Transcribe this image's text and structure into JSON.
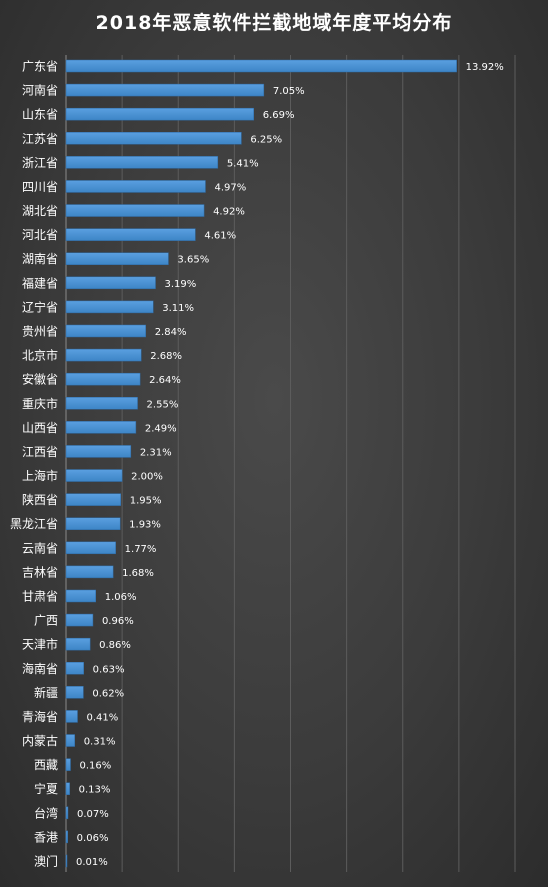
{
  "chart_data": {
    "type": "bar",
    "orientation": "horizontal",
    "title": "2018年恶意软件拦截地域年度平均分布",
    "xlabel": "",
    "ylabel": "",
    "xlim": [
      0,
      16
    ],
    "grid": "vertical gridlines",
    "legend": "none",
    "value_format": "percent, two decimals",
    "bar_color": "#3d85c6",
    "categories": [
      "广东省",
      "河南省",
      "山东省",
      "江苏省",
      "浙江省",
      "四川省",
      "湖北省",
      "河北省",
      "湖南省",
      "福建省",
      "辽宁省",
      "贵州省",
      "北京市",
      "安徽省",
      "重庆市",
      "山西省",
      "江西省",
      "上海市",
      "陕西省",
      "黑龙江省",
      "云南省",
      "吉林省",
      "甘肃省",
      "广西",
      "天津市",
      "海南省",
      "新疆",
      "青海省",
      "内蒙古",
      "西藏",
      "宁夏",
      "台湾",
      "香港",
      "澳门"
    ],
    "values": [
      13.92,
      7.05,
      6.69,
      6.25,
      5.41,
      4.97,
      4.92,
      4.61,
      3.65,
      3.19,
      3.11,
      2.84,
      2.68,
      2.64,
      2.55,
      2.49,
      2.31,
      2.0,
      1.95,
      1.93,
      1.77,
      1.68,
      1.06,
      0.96,
      0.86,
      0.63,
      0.62,
      0.41,
      0.31,
      0.16,
      0.13,
      0.07,
      0.06,
      0.01
    ],
    "labels": [
      "13.92%",
      "7.05%",
      "6.69%",
      "6.25%",
      "5.41%",
      "4.97%",
      "4.92%",
      "4.61%",
      "3.65%",
      "3.19%",
      "3.11%",
      "2.84%",
      "2.68%",
      "2.64%",
      "2.55%",
      "2.49%",
      "2.31%",
      "2.00%",
      "1.95%",
      "1.93%",
      "1.77%",
      "1.68%",
      "1.06%",
      "0.96%",
      "0.86%",
      "0.63%",
      "0.62%",
      "0.41%",
      "0.31%",
      "0.16%",
      "0.13%",
      "0.07%",
      "0.06%",
      "0.01%"
    ]
  }
}
